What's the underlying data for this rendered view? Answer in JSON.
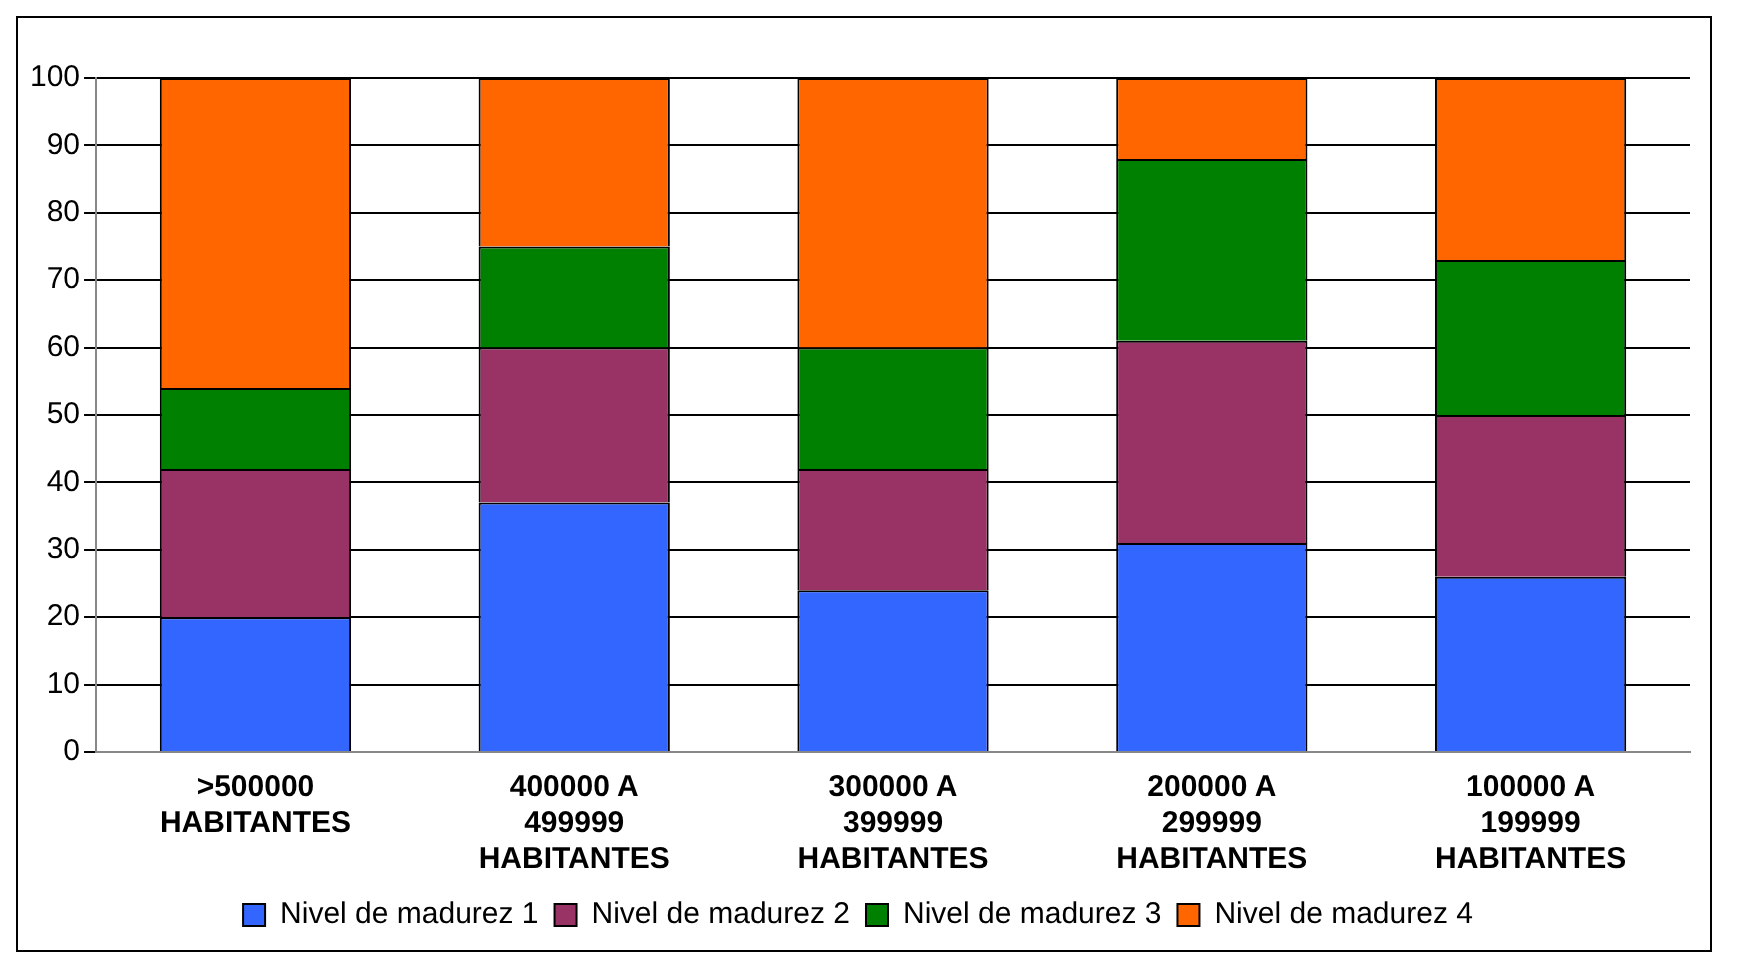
{
  "chart_data": {
    "type": "bar",
    "stacked": true,
    "categories": [
      ">500000\nHABITANTES",
      "400000 A\n499999\nHABITANTES",
      "300000 A\n399999\nHABITANTES",
      "200000 A\n299999\nHABITANTES",
      "100000 A\n199999\nHABITANTES"
    ],
    "series": [
      {
        "name": "Nivel de madurez 1",
        "color": "#3366ff",
        "values": [
          20,
          37,
          24,
          31,
          26
        ]
      },
      {
        "name": "Nivel de madurez 2",
        "color": "#993366",
        "values": [
          22,
          23,
          18,
          30,
          24
        ]
      },
      {
        "name": "Nivel de madurez 3",
        "color": "#008000",
        "values": [
          12,
          15,
          18,
          27,
          23
        ]
      },
      {
        "name": "Nivel de madurez 4",
        "color": "#ff6600",
        "values": [
          46,
          25,
          40,
          12,
          27
        ]
      }
    ],
    "ylim": [
      0,
      100
    ],
    "yticks": [
      0,
      10,
      20,
      30,
      40,
      50,
      60,
      70,
      80,
      90,
      100
    ],
    "grid": "y",
    "legend": "bottom"
  }
}
